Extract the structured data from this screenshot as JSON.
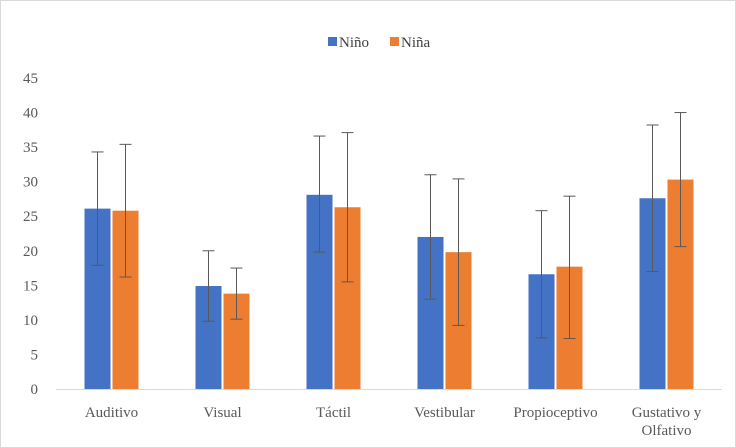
{
  "chart_data": {
    "type": "bar",
    "categories": [
      "Auditivo",
      "Visual",
      "Táctil",
      "Vestibular",
      "Propioceptivo",
      "Gustativo y Olfativo"
    ],
    "category_lines": [
      [
        "Auditivo"
      ],
      [
        "Visual"
      ],
      [
        "Táctil"
      ],
      [
        "Vestibular"
      ],
      [
        "Propioceptivo"
      ],
      [
        "Gustativo y",
        "Olfativo"
      ]
    ],
    "series": [
      {
        "name": "Niño",
        "color": "#4472c4",
        "values": [
          26.1,
          14.9,
          28.1,
          22.0,
          16.6,
          27.6
        ],
        "error_low": [
          17.9,
          9.8,
          19.8,
          13.0,
          7.4,
          17.0
        ],
        "error_high": [
          34.3,
          20.0,
          36.6,
          31.0,
          25.8,
          38.2
        ]
      },
      {
        "name": "Niña",
        "color": "#ed7d31",
        "values": [
          25.8,
          13.8,
          26.3,
          19.8,
          17.7,
          30.3
        ],
        "error_low": [
          16.2,
          10.1,
          15.5,
          9.2,
          7.3,
          20.6
        ],
        "error_high": [
          35.4,
          17.5,
          37.1,
          30.4,
          27.9,
          40.0
        ]
      }
    ],
    "y_ticks": [
      "0",
      "5",
      "10",
      "15",
      "20",
      "25",
      "30",
      "35",
      "40",
      "45"
    ],
    "ylim": [
      0,
      45
    ],
    "title": "",
    "xlabel": "",
    "ylabel": "",
    "legend_position": "top",
    "grid": false
  }
}
